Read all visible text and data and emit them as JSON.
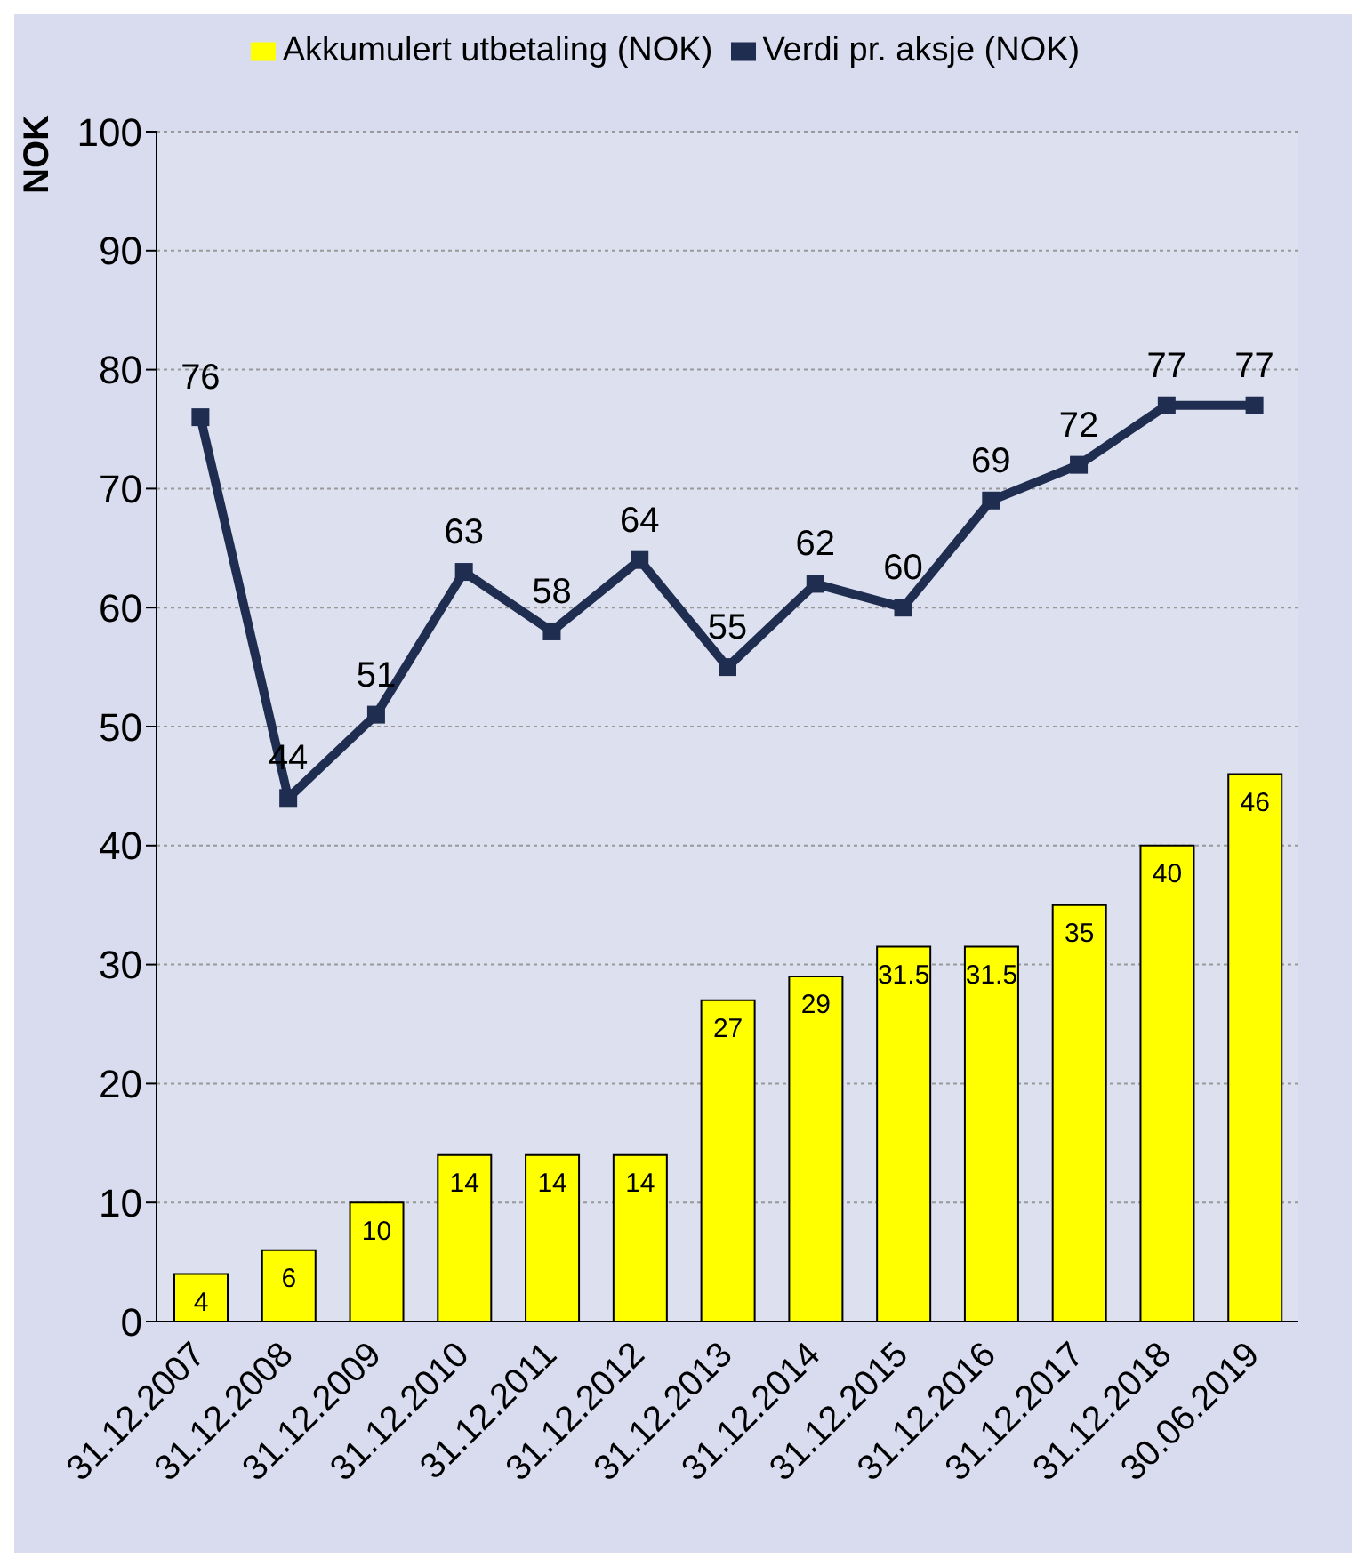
{
  "chart_data": {
    "type": "bar",
    "ylabel": "NOK",
    "categories": [
      "31.12.2007",
      "31.12.2008",
      "31.12.2009",
      "31.12.2010",
      "31.12.2011",
      "31.12.2012",
      "31.12.2013",
      "31.12.2014",
      "31.12.2015",
      "31.12.2016",
      "31.12.2017",
      "31.12.2018",
      "30.06.2019"
    ],
    "series": [
      {
        "name": "Akkumulert utbetaling (NOK)",
        "color": "#ffff00",
        "values": [
          4,
          6,
          10,
          14,
          14,
          14,
          27,
          29,
          31.5,
          31.5,
          35,
          40,
          46
        ]
      },
      {
        "name": "Verdi pr. aksje (NOK)",
        "type": "line",
        "color": "#1f2d50",
        "marker": "square",
        "values": [
          76,
          44,
          51,
          63,
          58,
          64,
          55,
          62,
          60,
          69,
          72,
          77,
          77
        ]
      }
    ],
    "ylim": [
      0,
      100
    ],
    "yticks": [
      0,
      10,
      20,
      30,
      40,
      50,
      60,
      70,
      80,
      90,
      100
    ],
    "grid": "y",
    "legend": "top",
    "data_labels": true
  }
}
